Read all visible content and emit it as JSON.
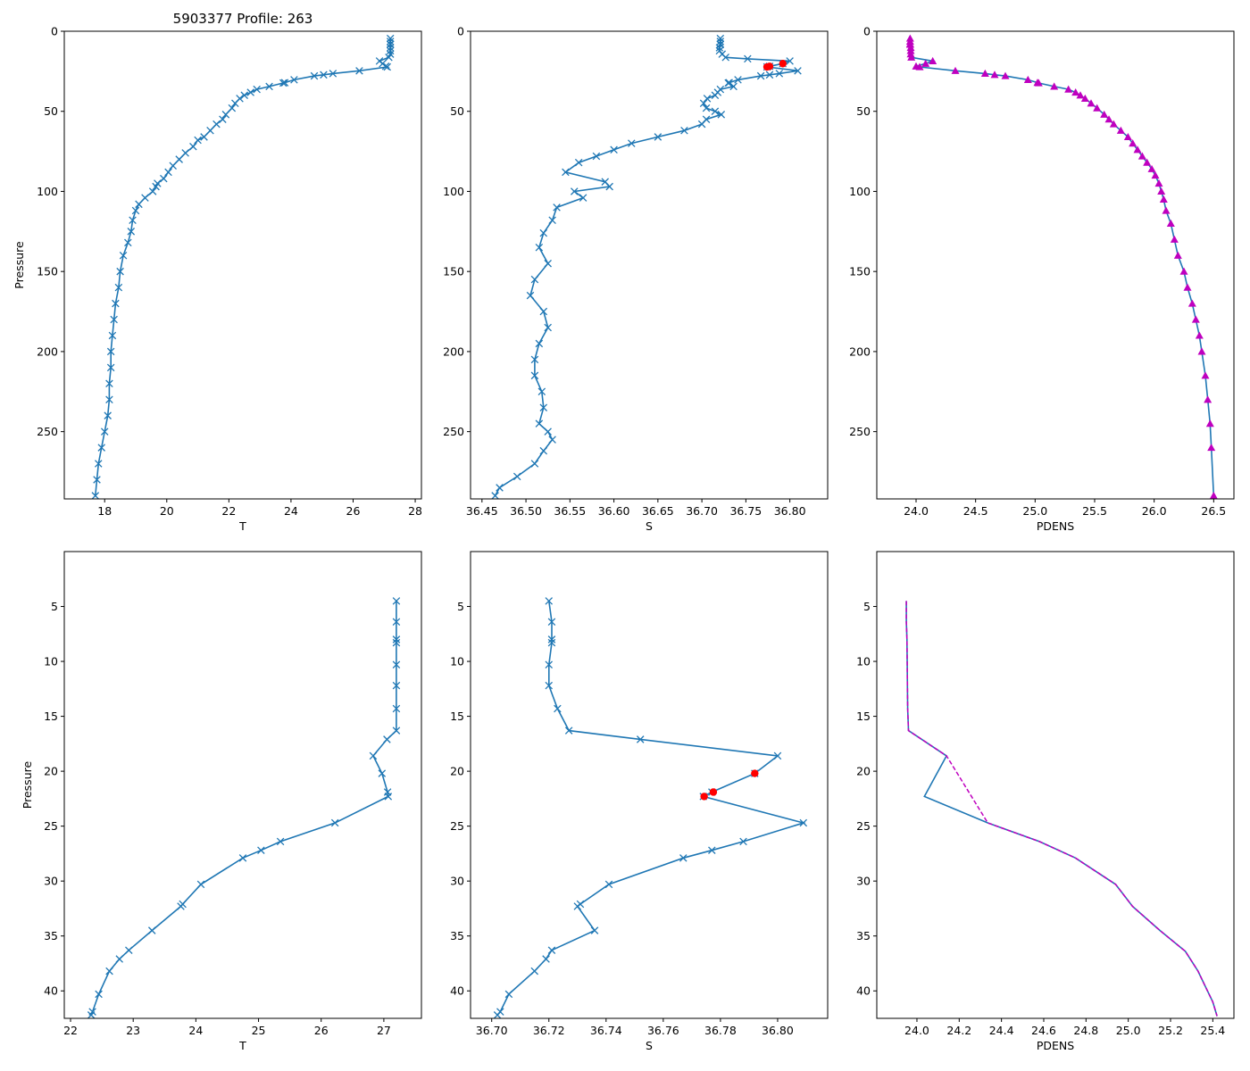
{
  "figure": {
    "title": "5903377 Profile: 263"
  },
  "colors": {
    "line": "#1f77b4",
    "density": "#bf00bf",
    "flag": "#ff0000"
  },
  "chart_data": [
    {
      "id": "t_full",
      "type": "line",
      "marker": "x",
      "xlabel": "T",
      "ylabel": "Pressure",
      "xlim": [
        16.7,
        28.2
      ],
      "ylim": [
        292,
        0
      ],
      "y_inverted": true,
      "xticks": [
        "18",
        "20",
        "22",
        "24",
        "26",
        "28"
      ],
      "yticks": [
        "0",
        "50",
        "100",
        "150",
        "200",
        "250"
      ],
      "x": [
        27.2,
        27.2,
        27.2,
        27.2,
        27.2,
        27.2,
        27.2,
        27.15,
        26.85,
        26.95,
        27.05,
        27.1,
        26.2,
        25.35,
        25.05,
        24.75,
        24.1,
        23.8,
        23.75,
        23.3,
        22.9,
        22.7,
        22.5,
        22.35,
        22.2,
        22.1,
        21.9,
        21.8,
        21.6,
        21.4,
        21.2,
        21.0,
        20.85,
        20.6,
        20.4,
        20.2,
        20.05,
        19.9,
        19.7,
        19.65,
        19.55,
        19.3,
        19.1,
        19.0,
        18.9,
        18.85,
        18.75,
        18.6,
        18.5,
        18.45,
        18.35,
        18.3,
        18.25,
        18.2,
        18.2,
        18.15,
        18.15,
        18.1,
        18.0,
        17.9,
        17.8,
        17.75,
        17.7
      ],
      "y": [
        4.5,
        6.4,
        8.0,
        8.3,
        10.3,
        12.2,
        14.3,
        16.3,
        18.6,
        20.2,
        21.9,
        22.3,
        24.7,
        26.4,
        27.2,
        27.9,
        30.3,
        32.1,
        32.3,
        34.5,
        36.3,
        38.2,
        40.0,
        42.0,
        45,
        48,
        52,
        55,
        58,
        62,
        66,
        68,
        72,
        76,
        80,
        84,
        88,
        92,
        95,
        97,
        100,
        104,
        108,
        112,
        118,
        125,
        132,
        140,
        150,
        160,
        170,
        180,
        190,
        200,
        210,
        220,
        230,
        240,
        250,
        260,
        270,
        280,
        290
      ]
    },
    {
      "id": "s_full",
      "type": "line",
      "marker": "x",
      "xlabel": "S",
      "ylabel": "",
      "xlim": [
        36.437,
        36.843
      ],
      "ylim": [
        292,
        0
      ],
      "y_inverted": true,
      "xticks": [
        "36.45",
        "36.50",
        "36.55",
        "36.60",
        "36.65",
        "36.70",
        "36.75",
        "36.80"
      ],
      "yticks": [
        "0",
        "50",
        "100",
        "150",
        "200",
        "250"
      ],
      "x": [
        36.721,
        36.721,
        36.721,
        36.721,
        36.72,
        36.72,
        36.723,
        36.727,
        36.752,
        36.8,
        36.792,
        36.777,
        36.774,
        36.809,
        36.788,
        36.777,
        36.767,
        36.741,
        36.731,
        36.73,
        36.736,
        36.721,
        36.718,
        36.715,
        36.706,
        36.702,
        36.705,
        36.715,
        36.722,
        36.705,
        36.7,
        36.68,
        36.65,
        36.62,
        36.6,
        36.58,
        36.56,
        36.545,
        36.59,
        36.595,
        36.555,
        36.565,
        36.535,
        36.53,
        36.52,
        36.515,
        36.525,
        36.51,
        36.505,
        36.52,
        36.525,
        36.515,
        36.51,
        36.51,
        36.518,
        36.52,
        36.515,
        36.525,
        36.53,
        36.52,
        36.51,
        36.49,
        36.47,
        36.465
      ],
      "y": [
        4.5,
        6.4,
        8.0,
        8.3,
        10.3,
        12.2,
        14.3,
        16.3,
        17.2,
        18.6,
        20.2,
        21.9,
        22.3,
        24.7,
        26.4,
        27.2,
        27.9,
        30.3,
        32.1,
        32.3,
        34.5,
        36.3,
        38.2,
        40.0,
        42.0,
        45,
        48,
        50,
        52,
        55,
        58,
        62,
        66,
        70,
        74,
        78,
        82,
        88,
        94,
        97,
        100,
        104,
        110,
        118,
        126,
        135,
        145,
        155,
        165,
        175,
        185,
        195,
        205,
        215,
        225,
        235,
        245,
        250,
        255,
        262,
        270,
        278,
        285,
        290
      ],
      "flagged": {
        "x": [
          36.792,
          36.777,
          36.774
        ],
        "y": [
          20.2,
          21.9,
          22.3
        ]
      }
    },
    {
      "id": "pdens_full",
      "type": "line",
      "marker": "triangle",
      "xlabel": "PDENS",
      "ylabel": "",
      "xlim": [
        23.67,
        26.67
      ],
      "ylim": [
        292,
        0
      ],
      "y_inverted": true,
      "xticks": [
        "24.0",
        "24.5",
        "25.0",
        "25.5",
        "26.0",
        "26.5"
      ],
      "yticks": [
        "0",
        "50",
        "100",
        "150",
        "200",
        "250"
      ],
      "x": [
        23.95,
        23.95,
        23.95,
        23.95,
        23.955,
        23.955,
        23.955,
        23.96,
        24.14,
        24.08,
        24.0,
        24.03,
        24.33,
        24.58,
        24.66,
        24.75,
        24.94,
        25.02,
        25.03,
        25.16,
        25.28,
        25.34,
        25.38,
        25.42,
        25.47,
        25.52,
        25.58,
        25.62,
        25.66,
        25.72,
        25.78,
        25.82,
        25.86,
        25.9,
        25.94,
        25.98,
        26.01,
        26.04,
        26.06,
        26.08,
        26.1,
        26.14,
        26.17,
        26.2,
        26.25,
        26.28,
        26.32,
        26.35,
        26.38,
        26.4,
        26.43,
        26.45,
        26.47,
        26.48,
        26.5
      ],
      "y": [
        4.5,
        6.4,
        8.0,
        8.3,
        10.3,
        12.2,
        14.3,
        16.3,
        18.6,
        20.2,
        21.9,
        22.3,
        24.7,
        26.4,
        27.2,
        27.9,
        30.3,
        32.1,
        32.3,
        34.5,
        36.3,
        38.2,
        40.0,
        42.0,
        45,
        48,
        52,
        55,
        58,
        62,
        66,
        70,
        74,
        78,
        82,
        86,
        90,
        95,
        100,
        105,
        112,
        120,
        130,
        140,
        150,
        160,
        170,
        180,
        190,
        200,
        215,
        230,
        245,
        260,
        290
      ]
    },
    {
      "id": "t_zoom",
      "type": "line",
      "marker": "x",
      "xlabel": "T",
      "ylabel": "Pressure",
      "xlim": [
        21.9,
        27.6
      ],
      "ylim": [
        42.5,
        0.0
      ],
      "y_inverted": true,
      "xticks": [
        "22",
        "23",
        "24",
        "25",
        "26",
        "27"
      ],
      "yticks": [
        "5",
        "10",
        "15",
        "20",
        "25",
        "30",
        "35",
        "40"
      ],
      "x": [
        27.2,
        27.2,
        27.2,
        27.2,
        27.2,
        27.2,
        27.2,
        27.2,
        27.05,
        26.83,
        26.97,
        27.06,
        27.07,
        26.22,
        25.35,
        25.04,
        24.75,
        24.08,
        23.79,
        23.76,
        23.3,
        22.93,
        22.78,
        22.62,
        22.45,
        22.35,
        22.33
      ],
      "y": [
        4.5,
        6.4,
        8.0,
        8.3,
        10.3,
        12.2,
        14.3,
        16.3,
        17.1,
        18.6,
        20.2,
        21.9,
        22.3,
        24.7,
        26.4,
        27.2,
        27.9,
        30.3,
        32.1,
        32.3,
        34.5,
        36.3,
        37.1,
        38.2,
        40.3,
        41.9,
        42.2
      ]
    },
    {
      "id": "s_zoom",
      "type": "line",
      "marker": "x",
      "xlabel": "S",
      "ylabel": "",
      "xlim": [
        36.6926,
        36.8175
      ],
      "ylim": [
        42.5,
        0.0
      ],
      "y_inverted": true,
      "xticks": [
        "36.70",
        "36.72",
        "36.74",
        "36.76",
        "36.78",
        "36.80"
      ],
      "yticks": [
        "5",
        "10",
        "15",
        "20",
        "25",
        "30",
        "35",
        "40"
      ],
      "x": [
        36.72,
        36.721,
        36.721,
        36.721,
        36.72,
        36.72,
        36.723,
        36.727,
        36.752,
        36.8,
        36.792,
        36.777,
        36.774,
        36.809,
        36.788,
        36.777,
        36.767,
        36.741,
        36.731,
        36.73,
        36.736,
        36.721,
        36.719,
        36.715,
        36.706,
        36.703,
        36.702
      ],
      "y": [
        4.5,
        6.4,
        8.0,
        8.3,
        10.3,
        12.2,
        14.3,
        16.3,
        17.1,
        18.6,
        20.2,
        21.9,
        22.3,
        24.7,
        26.4,
        27.2,
        27.9,
        30.3,
        32.1,
        32.3,
        34.5,
        36.3,
        37.1,
        38.2,
        40.3,
        41.9,
        42.2
      ],
      "flagged": {
        "x": [
          36.792,
          36.7775,
          36.7743
        ],
        "y": [
          20.2,
          21.9,
          22.3
        ]
      }
    },
    {
      "id": "pdens_zoom",
      "type": "line",
      "marker": "none",
      "xlabel": "PDENS",
      "ylabel": "",
      "xlim": [
        23.81,
        25.5
      ],
      "ylim": [
        42.5,
        0.0
      ],
      "y_inverted": true,
      "xticks": [
        "24.0",
        "24.2",
        "24.4",
        "24.6",
        "24.8",
        "25.0",
        "25.2",
        "25.4"
      ],
      "yticks": [
        "5",
        "10",
        "15",
        "20",
        "25",
        "30",
        "35",
        "40"
      ],
      "x": [
        23.95,
        23.95,
        23.953,
        23.953,
        23.954,
        23.955,
        23.956,
        23.96,
        24.14,
        24.035,
        24.335,
        24.58,
        24.75,
        24.94,
        25.02,
        25.15,
        25.27,
        25.33,
        25.37,
        25.4,
        25.42
      ],
      "y": [
        4.5,
        6.4,
        8.0,
        8.3,
        10.3,
        12.2,
        14.3,
        16.3,
        18.6,
        22.3,
        24.7,
        26.4,
        27.9,
        30.3,
        32.3,
        34.5,
        36.4,
        38.2,
        39.8,
        41.0,
        42.3
      ],
      "overlay": {
        "style": "dashed",
        "x": [
          23.95,
          23.95,
          23.953,
          23.953,
          23.954,
          23.955,
          23.956,
          23.96,
          24.14,
          24.14,
          24.335,
          24.58,
          24.75,
          24.94,
          25.02,
          25.15,
          25.27,
          25.33,
          25.37,
          25.4,
          25.42
        ],
        "y": [
          4.5,
          6.4,
          8.0,
          8.3,
          10.3,
          12.2,
          14.3,
          16.3,
          18.6,
          18.6,
          24.7,
          26.4,
          27.9,
          30.3,
          32.3,
          34.5,
          36.4,
          38.2,
          39.8,
          41.0,
          42.3
        ]
      }
    }
  ]
}
